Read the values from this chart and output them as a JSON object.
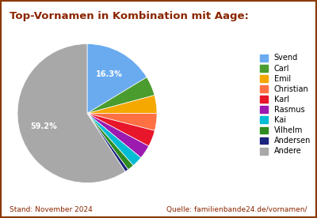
{
  "title": "Top-Vornamen in Kombination mit Aage:",
  "title_color": "#8B2500",
  "labels": [
    "Svend",
    "Carl",
    "Emil",
    "Christian",
    "Karl",
    "Rasmus",
    "Kai",
    "Vilhelm",
    "Andersen",
    "Andere"
  ],
  "values": [
    16.3,
    4.5,
    4.2,
    4.0,
    3.8,
    3.2,
    2.5,
    1.5,
    0.8,
    59.2
  ],
  "colors": [
    "#6AABF0",
    "#4A9C2F",
    "#F5A800",
    "#FF7043",
    "#E8162A",
    "#9C1AB0",
    "#00BCD4",
    "#2E8B20",
    "#1A237E",
    "#A8A8A8"
  ],
  "background_color": "#FFFFFF",
  "border_color": "#8B3A00",
  "footer_left": "Stand: November 2024",
  "footer_right": "Quelle: familienbande24.de/vornamen/",
  "footer_color": "#8B2500"
}
